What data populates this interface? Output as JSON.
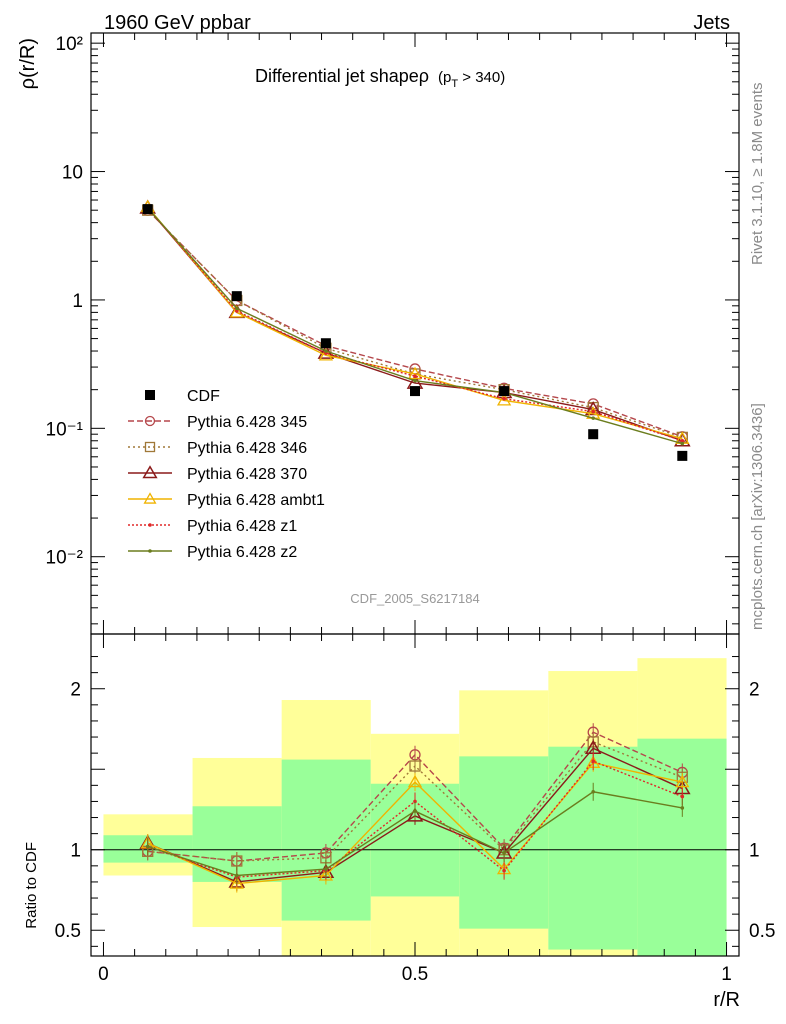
{
  "header": {
    "left": "1960 GeV ppbar",
    "right": "Jets",
    "title": "Differential jet shapeρ",
    "title_sub": "(p",
    "title_sub_T": "T",
    "title_sub_rest": " > 340)",
    "side_top": "Rivet 3.1.10, ≥ 1.8M events",
    "side_bottom": "mcplots.cern.ch [arXiv:1306.3436]",
    "analysis_id": "CDF_2005_S6217184"
  },
  "chart_data": [
    {
      "type": "line",
      "panel": "main",
      "ylabel": "ρ(r/R)",
      "yscale": "log",
      "ylim": [
        0.0025,
        120
      ],
      "xlim": [
        -0.02,
        1.02
      ],
      "y_tick_labels": [
        "10⁻²",
        "10⁻¹",
        "1",
        "10",
        "10²"
      ],
      "x": [
        0.071,
        0.214,
        0.357,
        0.5,
        0.643,
        0.786,
        0.929
      ],
      "data": {
        "name": "CDF",
        "values": [
          5.1,
          1.07,
          0.46,
          0.195,
          0.195,
          0.09,
          0.061
        ]
      },
      "series": [
        {
          "name": "Pythia 6.428 345",
          "color": "#b5474b",
          "values": [
            5.0,
            0.99,
            0.44,
            0.29,
            0.205,
            0.155,
            0.086
          ]
        },
        {
          "name": "Pythia 6.428 346",
          "color": "#a07838",
          "values": [
            5.0,
            0.99,
            0.42,
            0.265,
            0.2,
            0.145,
            0.085
          ]
        },
        {
          "name": "Pythia 6.428 370",
          "color": "#8b1a1a",
          "values": [
            5.2,
            0.8,
            0.385,
            0.225,
            0.19,
            0.14,
            0.08
          ]
        },
        {
          "name": "Pythia 6.428 ambt1",
          "color": "#f0b400",
          "values": [
            5.3,
            0.8,
            0.37,
            0.265,
            0.165,
            0.13,
            0.083
          ]
        },
        {
          "name": "Pythia 6.428 z1",
          "color": "#e02828",
          "values": [
            5.2,
            0.82,
            0.385,
            0.255,
            0.17,
            0.135,
            0.08
          ]
        },
        {
          "name": "Pythia 6.428 z2",
          "color": "#6b7d1e",
          "values": [
            5.2,
            0.86,
            0.4,
            0.235,
            0.19,
            0.12,
            0.076
          ]
        }
      ],
      "legend_position": "left"
    },
    {
      "type": "line",
      "panel": "ratio",
      "ylabel": "Ratio to CDF",
      "xlabel": "r/R",
      "ylim": [
        0.34,
        2.34
      ],
      "x_tick_labels": [
        "0",
        "0.5",
        "1"
      ],
      "y_tick_labels": [
        "0.5",
        "1",
        "2"
      ],
      "bands": {
        "edges": [
          0.0,
          0.143,
          0.286,
          0.429,
          0.571,
          0.714,
          0.857,
          1.0
        ],
        "green_low": [
          0.92,
          0.8,
          0.56,
          0.71,
          0.51,
          0.38,
          0.34
        ],
        "green_high": [
          1.09,
          1.27,
          1.56,
          1.41,
          1.58,
          1.64,
          1.69
        ],
        "yellow_low": [
          0.84,
          0.52,
          0.34,
          0.34,
          0.34,
          0.34,
          0.34
        ],
        "yellow_high": [
          1.22,
          1.57,
          1.93,
          1.72,
          1.99,
          2.11,
          2.19
        ]
      },
      "series": [
        {
          "name": "Pythia 6.428 345",
          "values": [
            0.99,
            0.93,
            0.98,
            1.59,
            1.01,
            1.73,
            1.48
          ]
        },
        {
          "name": "Pythia 6.428 346",
          "values": [
            0.99,
            0.93,
            0.95,
            1.52,
            1.0,
            1.67,
            1.45
          ]
        },
        {
          "name": "Pythia 6.428 370",
          "values": [
            1.04,
            0.8,
            0.86,
            1.21,
            0.98,
            1.63,
            1.38
          ]
        },
        {
          "name": "Pythia 6.428 ambt1",
          "values": [
            1.04,
            0.79,
            0.84,
            1.42,
            0.88,
            1.54,
            1.42
          ]
        },
        {
          "name": "Pythia 6.428 z1",
          "values": [
            1.02,
            0.83,
            0.87,
            1.3,
            0.87,
            1.55,
            1.33
          ]
        },
        {
          "name": "Pythia 6.428 z2",
          "values": [
            1.02,
            0.84,
            0.88,
            1.24,
            0.98,
            1.36,
            1.26
          ]
        }
      ]
    }
  ]
}
